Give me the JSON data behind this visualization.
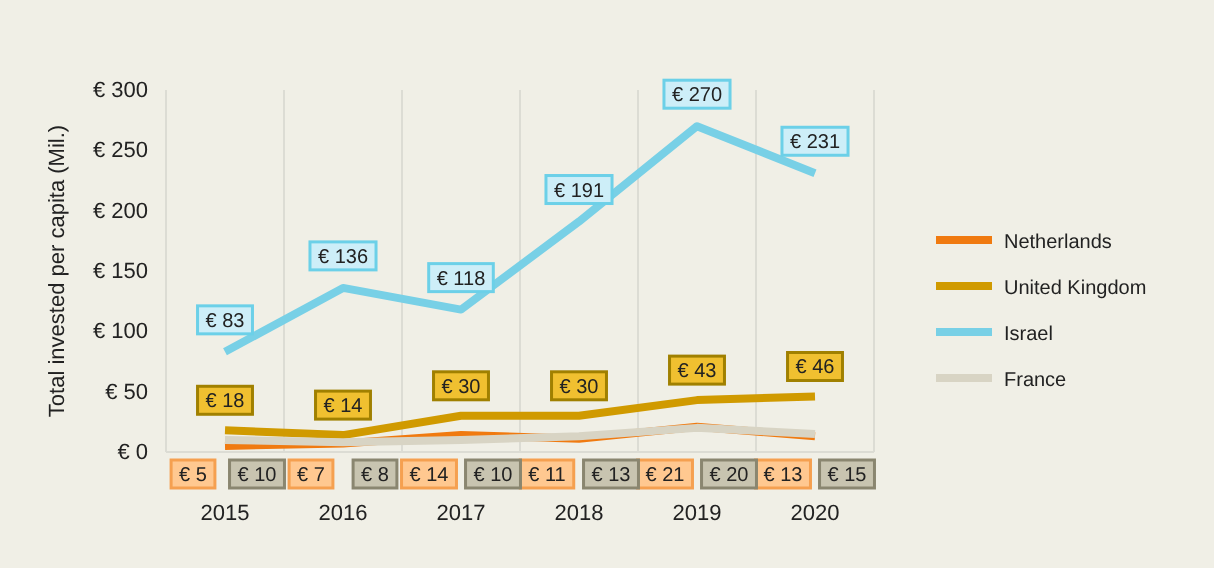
{
  "chart_data": {
    "type": "line",
    "ylabel": "Total invested per capita (Mil.)",
    "categories": [
      "2015",
      "2016",
      "2017",
      "2018",
      "2019",
      "2020"
    ],
    "ylim": [
      0,
      300
    ],
    "yticks": [
      {
        "value": 0,
        "label": "€ 0"
      },
      {
        "value": 50,
        "label": "€ 50"
      },
      {
        "value": 100,
        "label": "€ 100"
      },
      {
        "value": 150,
        "label": "€ 150"
      },
      {
        "value": 200,
        "label": "€ 200"
      },
      {
        "value": 250,
        "label": "€ 250"
      },
      {
        "value": 300,
        "label": "€ 300"
      }
    ],
    "grid": "x",
    "legend": "right",
    "marker": "none",
    "line_style": "solid",
    "series": [
      {
        "name": "Netherlands",
        "color": "#f07a10",
        "values": [
          5,
          7,
          14,
          11,
          21,
          13
        ],
        "value_labels": [
          "€ 5",
          "€ 7",
          "€ 14",
          "€ 11",
          "€ 21",
          "€ 13"
        ]
      },
      {
        "name": "United Kingdom",
        "color": "#d09a00",
        "values": [
          18,
          14,
          30,
          30,
          43,
          46
        ],
        "value_labels": [
          "€ 18",
          "€ 14",
          "€ 30",
          "€ 30",
          "€ 43",
          "€ 46"
        ]
      },
      {
        "name": "Israel",
        "color": "#78d0e6",
        "values": [
          83,
          136,
          118,
          191,
          270,
          231
        ],
        "value_labels": [
          "€ 83",
          "€ 136",
          "€ 118",
          "€ 191",
          "€ 270",
          "€ 231"
        ]
      },
      {
        "name": "France",
        "color": "#d8d4c4",
        "values": [
          10,
          8,
          10,
          13,
          20,
          15
        ],
        "value_labels": [
          "€ 10",
          "€ 8",
          "€ 10",
          "€ 13",
          "€ 20",
          "€ 15"
        ]
      }
    ]
  }
}
